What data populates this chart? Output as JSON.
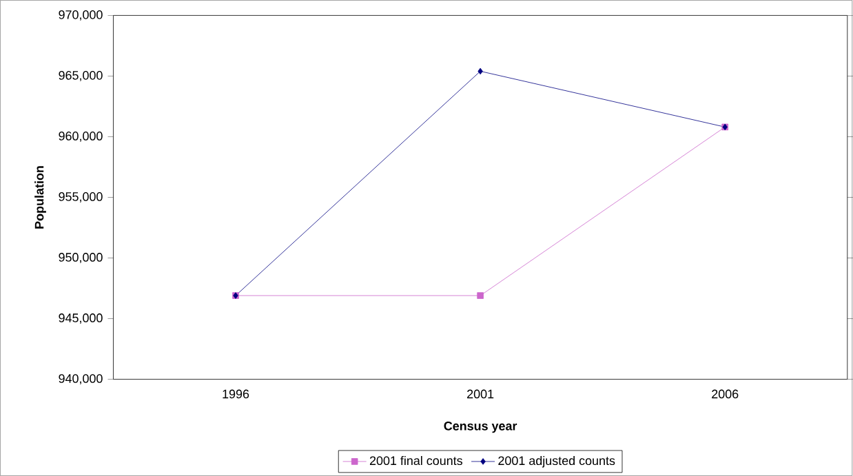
{
  "chart_data": {
    "type": "line",
    "xlabel": "Census year",
    "ylabel": "Population",
    "categories": [
      "1996",
      "2001",
      "2006"
    ],
    "series": [
      {
        "name": "2001 final counts",
        "color": "#cc66cc",
        "marker": "square",
        "values": [
          946900,
          946900,
          960800
        ]
      },
      {
        "name": "2001 adjusted counts",
        "color": "#000080",
        "marker": "diamond",
        "values": [
          946900,
          965400,
          960800
        ]
      }
    ],
    "ylim": [
      940000,
      970000
    ],
    "yticks": [
      {
        "value": 940000,
        "label": "940,000"
      },
      {
        "value": 945000,
        "label": "945,000"
      },
      {
        "value": 950000,
        "label": "950,000"
      },
      {
        "value": 955000,
        "label": "955,000"
      },
      {
        "value": 960000,
        "label": "960,000"
      },
      {
        "value": 965000,
        "label": "965,000"
      },
      {
        "value": 970000,
        "label": "970,000"
      }
    ],
    "legend": "bottom"
  }
}
